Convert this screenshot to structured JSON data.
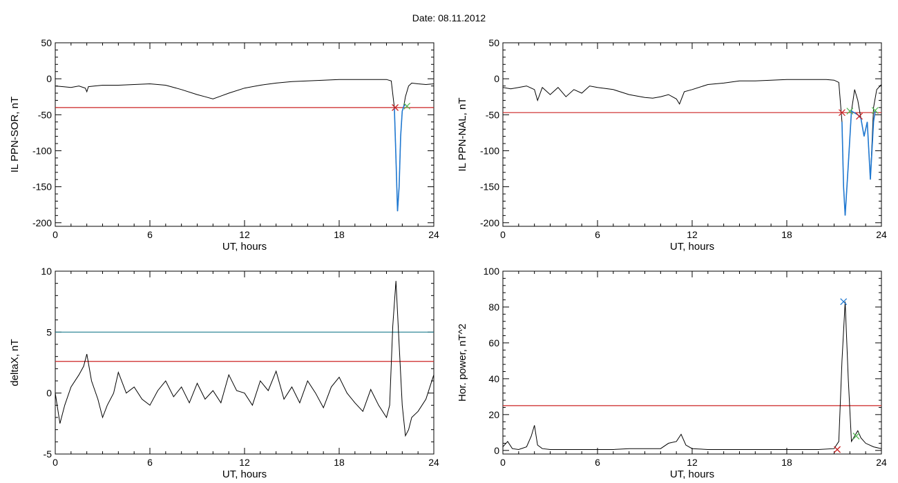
{
  "header": {
    "title": "Date:  08.11.2012"
  },
  "chart_data": [
    {
      "type": "line",
      "xlabel": "UT, hours",
      "ylabel": "IL PPN-SOR, nT",
      "xlim": [
        0,
        24
      ],
      "ylim": [
        -205,
        50
      ],
      "xticks": [
        0,
        6,
        12,
        18,
        24
      ],
      "yticks": [
        50,
        0,
        -50,
        -100,
        -150,
        -200
      ],
      "series": [
        {
          "color": "#000000",
          "x": [
            0,
            0.5,
            1,
            1.5,
            1.9,
            2.0,
            2.1,
            2.5,
            3,
            4,
            5,
            6,
            7,
            8,
            9,
            9.5,
            10,
            10.5,
            11,
            12,
            13,
            14,
            15,
            16,
            17,
            18,
            19,
            20,
            20.5,
            21,
            21.3,
            21.5,
            21.6,
            21.7,
            21.8,
            21.9,
            22.0,
            22.1,
            22.2,
            22.4,
            22.6,
            23,
            23.5,
            24
          ],
          "y": [
            -10,
            -11,
            -12,
            -10,
            -13,
            -18,
            -11,
            -10,
            -9,
            -9,
            -8,
            -7,
            -9,
            -15,
            -22,
            -25,
            -28,
            -24,
            -20,
            -13,
            -9,
            -6,
            -4,
            -3,
            -2,
            -1,
            -1,
            -1,
            -1,
            -1,
            -3,
            -40,
            -110,
            -184,
            -150,
            -80,
            -45,
            -38,
            -25,
            -10,
            -6,
            -7,
            -8,
            -7
          ]
        },
        {
          "color": "#1f78d1",
          "x": [
            21.5,
            21.6,
            21.7,
            21.8,
            21.9,
            22.0,
            22.1,
            22.2
          ],
          "y": [
            -40,
            -110,
            -184,
            -150,
            -80,
            -45,
            -38,
            -36
          ]
        }
      ],
      "hlines": [
        {
          "y": -40,
          "color": "#cc2222"
        }
      ],
      "markers": [
        {
          "x": 21.55,
          "y": -40,
          "color": "#cc2222"
        },
        {
          "x": 22.3,
          "y": -38,
          "color": "#55bb55"
        }
      ]
    },
    {
      "type": "line",
      "xlabel": "UT, hours",
      "ylabel": "IL PPN-NAL, nT",
      "xlim": [
        0,
        24
      ],
      "ylim": [
        -205,
        50
      ],
      "xticks": [
        0,
        6,
        12,
        18,
        24
      ],
      "yticks": [
        50,
        0,
        -50,
        -100,
        -150,
        -200
      ],
      "series": [
        {
          "color": "#000000",
          "x": [
            0,
            0.5,
            1,
            1.5,
            2,
            2.2,
            2.5,
            3,
            3.5,
            4,
            4.5,
            5,
            5.5,
            6,
            7,
            8,
            9,
            9.5,
            10,
            10.5,
            11,
            11.2,
            11.5,
            12,
            13,
            14,
            15,
            16,
            17,
            18,
            19,
            20,
            20.5,
            21,
            21.3,
            21.5,
            21.6,
            21.7,
            21.9,
            22.1,
            22.3,
            22.5,
            22.7,
            22.9,
            23.1,
            23.3,
            23.5,
            23.7,
            24
          ],
          "y": [
            -12,
            -14,
            -12,
            -10,
            -15,
            -30,
            -12,
            -22,
            -12,
            -25,
            -15,
            -20,
            -10,
            -12,
            -15,
            -22,
            -26,
            -27,
            -25,
            -22,
            -28,
            -35,
            -18,
            -15,
            -8,
            -6,
            -3,
            -3,
            -2,
            -1,
            -1,
            -1,
            -1,
            -2,
            -5,
            -60,
            -150,
            -190,
            -120,
            -45,
            -15,
            -30,
            -55,
            -80,
            -60,
            -140,
            -40,
            -15,
            -8
          ]
        },
        {
          "color": "#1f78d1",
          "x": [
            21.5,
            21.6,
            21.7,
            21.9,
            22.1,
            22.5,
            22.7,
            22.9,
            23.1,
            23.3,
            23.5,
            23.6
          ],
          "y": [
            -60,
            -150,
            -190,
            -120,
            -45,
            -50,
            -55,
            -80,
            -60,
            -140,
            -60,
            -45
          ]
        }
      ],
      "hlines": [
        {
          "y": -47,
          "color": "#cc2222"
        }
      ],
      "markers": [
        {
          "x": 21.5,
          "y": -47,
          "color": "#cc2222"
        },
        {
          "x": 22.0,
          "y": -45,
          "color": "#55bb55"
        },
        {
          "x": 22.6,
          "y": -52,
          "color": "#cc2222"
        },
        {
          "x": 23.6,
          "y": -44,
          "color": "#55bb55"
        }
      ]
    },
    {
      "type": "line",
      "xlabel": "UT, hours",
      "ylabel": "deltaX, nT",
      "xlim": [
        0,
        24
      ],
      "ylim": [
        -5,
        10
      ],
      "xticks": [
        0,
        6,
        12,
        18,
        24
      ],
      "yticks": [
        10,
        5,
        0,
        -5
      ],
      "series": [
        {
          "color": "#000000",
          "x": [
            0,
            0.3,
            0.6,
            1,
            1.5,
            1.8,
            2.0,
            2.3,
            2.7,
            3,
            3.3,
            3.7,
            4,
            4.5,
            5,
            5.5,
            6,
            6.5,
            7,
            7.5,
            8,
            8.5,
            9,
            9.5,
            10,
            10.5,
            11,
            11.5,
            12,
            12.5,
            13,
            13.5,
            14,
            14.5,
            15,
            15.5,
            16,
            16.5,
            17,
            17.5,
            18,
            18.5,
            19,
            19.5,
            20,
            20.5,
            21,
            21.2,
            21.4,
            21.6,
            21.8,
            22.0,
            22.2,
            22.4,
            22.6,
            23,
            23.5,
            24
          ],
          "y": [
            0,
            -2.5,
            -1,
            0.5,
            1.5,
            2.2,
            3.2,
            1,
            -0.5,
            -2,
            -1,
            0,
            1.7,
            0,
            0.5,
            -0.5,
            -1,
            0.2,
            1,
            -0.3,
            0.5,
            -0.8,
            0.8,
            -0.5,
            0.2,
            -0.8,
            1.5,
            0.2,
            0,
            -1,
            1,
            0.2,
            1.8,
            -0.5,
            0.5,
            -0.8,
            1,
            0,
            -1.2,
            0.5,
            1.3,
            0,
            -0.8,
            -1.5,
            0.3,
            -1,
            -2,
            -1,
            5.5,
            9.2,
            4,
            -1,
            -3.5,
            -3,
            -2,
            -1.5,
            -0.5,
            1.5
          ]
        }
      ],
      "hlines": [
        {
          "y": 5,
          "color": "#1e7d8e"
        },
        {
          "y": 2.6,
          "color": "#cc2222"
        }
      ],
      "markers": []
    },
    {
      "type": "line",
      "xlabel": "UT, hours",
      "ylabel": "Hor. power, nT^2",
      "xlim": [
        0,
        24
      ],
      "ylim": [
        -2,
        100
      ],
      "xticks": [
        0,
        6,
        12,
        18,
        24
      ],
      "yticks": [
        100,
        80,
        60,
        40,
        20,
        0
      ],
      "series": [
        {
          "color": "#000000",
          "x": [
            0,
            0.3,
            0.6,
            1,
            1.5,
            1.8,
            2.0,
            2.2,
            2.5,
            3,
            4,
            5,
            6,
            7,
            8,
            9,
            10,
            10.5,
            11,
            11.3,
            11.6,
            12,
            13,
            14,
            15,
            16,
            17,
            18,
            19,
            20,
            21,
            21.3,
            21.5,
            21.7,
            21.9,
            22.1,
            22.3,
            22.5,
            22.7,
            23,
            23.5,
            24
          ],
          "y": [
            2,
            5,
            1,
            0.5,
            2,
            8,
            14,
            3,
            1,
            0.5,
            0.5,
            0.5,
            0.5,
            0.5,
            1,
            1,
            1,
            4,
            5,
            9,
            3,
            1,
            0.5,
            0.5,
            0.5,
            0.5,
            0.5,
            0.5,
            0.5,
            0.5,
            1,
            5,
            50,
            83,
            40,
            5,
            8,
            11,
            7,
            4,
            2,
            1
          ]
        }
      ],
      "hlines": [
        {
          "y": 25,
          "color": "#cc2222"
        }
      ],
      "markers": [
        {
          "x": 21.6,
          "y": 83,
          "color": "#1f78d1"
        },
        {
          "x": 21.2,
          "y": 0.5,
          "color": "#cc2222"
        },
        {
          "x": 22.4,
          "y": 8,
          "color": "#55bb55"
        }
      ]
    }
  ]
}
